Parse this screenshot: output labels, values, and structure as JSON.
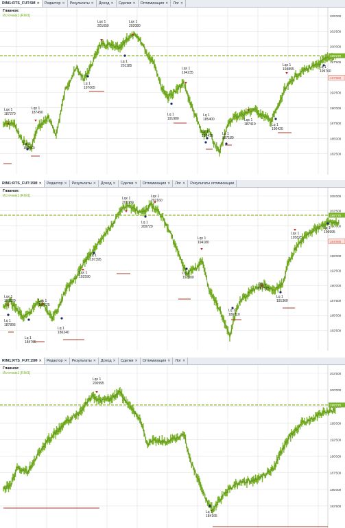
{
  "colors": {
    "price": "#7ab32a",
    "price_dark": "#5a8a1a",
    "level": "#a63c2a",
    "dashed": "#8fb332",
    "grid": "#e2e2e2",
    "tag_green": "#7ab32a",
    "tag_red": "#d95a4a",
    "buy": "#cc2222",
    "sell": "#1a2a66"
  },
  "panels": [
    {
      "tabs": [
        {
          "label": "RIM1:RTS_FUT:5M",
          "active": true
        },
        {
          "label": "Редактор"
        },
        {
          "label": "Результаты"
        },
        {
          "label": "Доход"
        },
        {
          "label": "Сделки"
        },
        {
          "label": "Оптимизация"
        },
        {
          "label": "Лог"
        }
      ],
      "legend_main": "Главное:",
      "legend_sub": "Источник1 [RIM1]",
      "y_ticks": [
        "205'000",
        "202'500",
        "200'000",
        "197'500",
        "195'000",
        "192'500",
        "190'000",
        "187'500",
        "185'000",
        "182'500"
      ],
      "current_price": "199'270",
      "red_price": "197'860",
      "annotations": [
        "Lqx 1",
        "187270",
        "Lqx 1",
        "187490",
        "Lq 1",
        "186560",
        "Lq 1",
        "197065",
        "Lqx 1",
        "201650",
        "Lqx 1",
        "202080",
        "Lq 1",
        "201185",
        "Lqx 1",
        "194235",
        "Lq 1",
        "191980",
        "Lq 1",
        "185400",
        "Lq 1",
        "187415",
        "Lqx 1",
        "187410",
        "Lq 1",
        "190420",
        "Lq 1",
        "187180",
        "Lqx 1",
        "194895",
        "Lq 1",
        "199760"
      ]
    },
    {
      "tabs": [
        {
          "label": "RIM1:RTS_FUT:15M",
          "active": true
        },
        {
          "label": "Редактор"
        },
        {
          "label": "Результаты"
        },
        {
          "label": "Доход"
        },
        {
          "label": "Сделки"
        },
        {
          "label": "Оптимизация"
        },
        {
          "label": "Лог"
        },
        {
          "label": "Результаты оптимизации"
        }
      ],
      "legend_main": "Главное:",
      "legend_sub": "Источник1 [RIM1]",
      "y_ticks": [
        "205'000",
        "202'500",
        "200'000",
        "197'500",
        "195'000",
        "192'500",
        "190'000",
        "187'500",
        "185'000",
        "182'500"
      ],
      "current_price": "199'775",
      "red_price": "194'985",
      "annotations": [
        "Lqx 1",
        "186220",
        "Lq 1",
        "187895",
        "Lq 1",
        "184765",
        "Lqx 1",
        "187625",
        "Lq 1",
        "186240",
        "Lqx 1",
        "192590",
        "Lq 1",
        "197395",
        "Lqx 1",
        "201080",
        "Lqx 1",
        "202160",
        "Lq 1",
        "200720",
        "Lqx 1",
        "194180",
        "Lq 1",
        "192900",
        "Lq 1",
        "186710",
        "Lqx 1",
        "187515",
        "Lq 1",
        "191360",
        "Lqx 1",
        "195825",
        "Lq 1",
        "199995"
      ]
    },
    {
      "tabs": [
        {
          "label": "RIM1:RTS_FUT:15M",
          "active": true
        },
        {
          "label": "Редактор"
        },
        {
          "label": "Результаты"
        },
        {
          "label": "Доход"
        },
        {
          "label": "Сделки"
        },
        {
          "label": "Оптимизация"
        },
        {
          "label": "Лог"
        }
      ],
      "legend_main": "Главное:",
      "legend_sub": "Источник1 [RIM1]",
      "y_ticks": [
        "202'500",
        "200'000",
        "197'500",
        "195'000",
        "192'500",
        "190'000",
        "187'500",
        "185'000",
        "182'500"
      ],
      "current_price": "199'270",
      "annotations": [
        "Lqx 1",
        "200995",
        "Lq 1",
        "184165"
      ]
    }
  ]
}
